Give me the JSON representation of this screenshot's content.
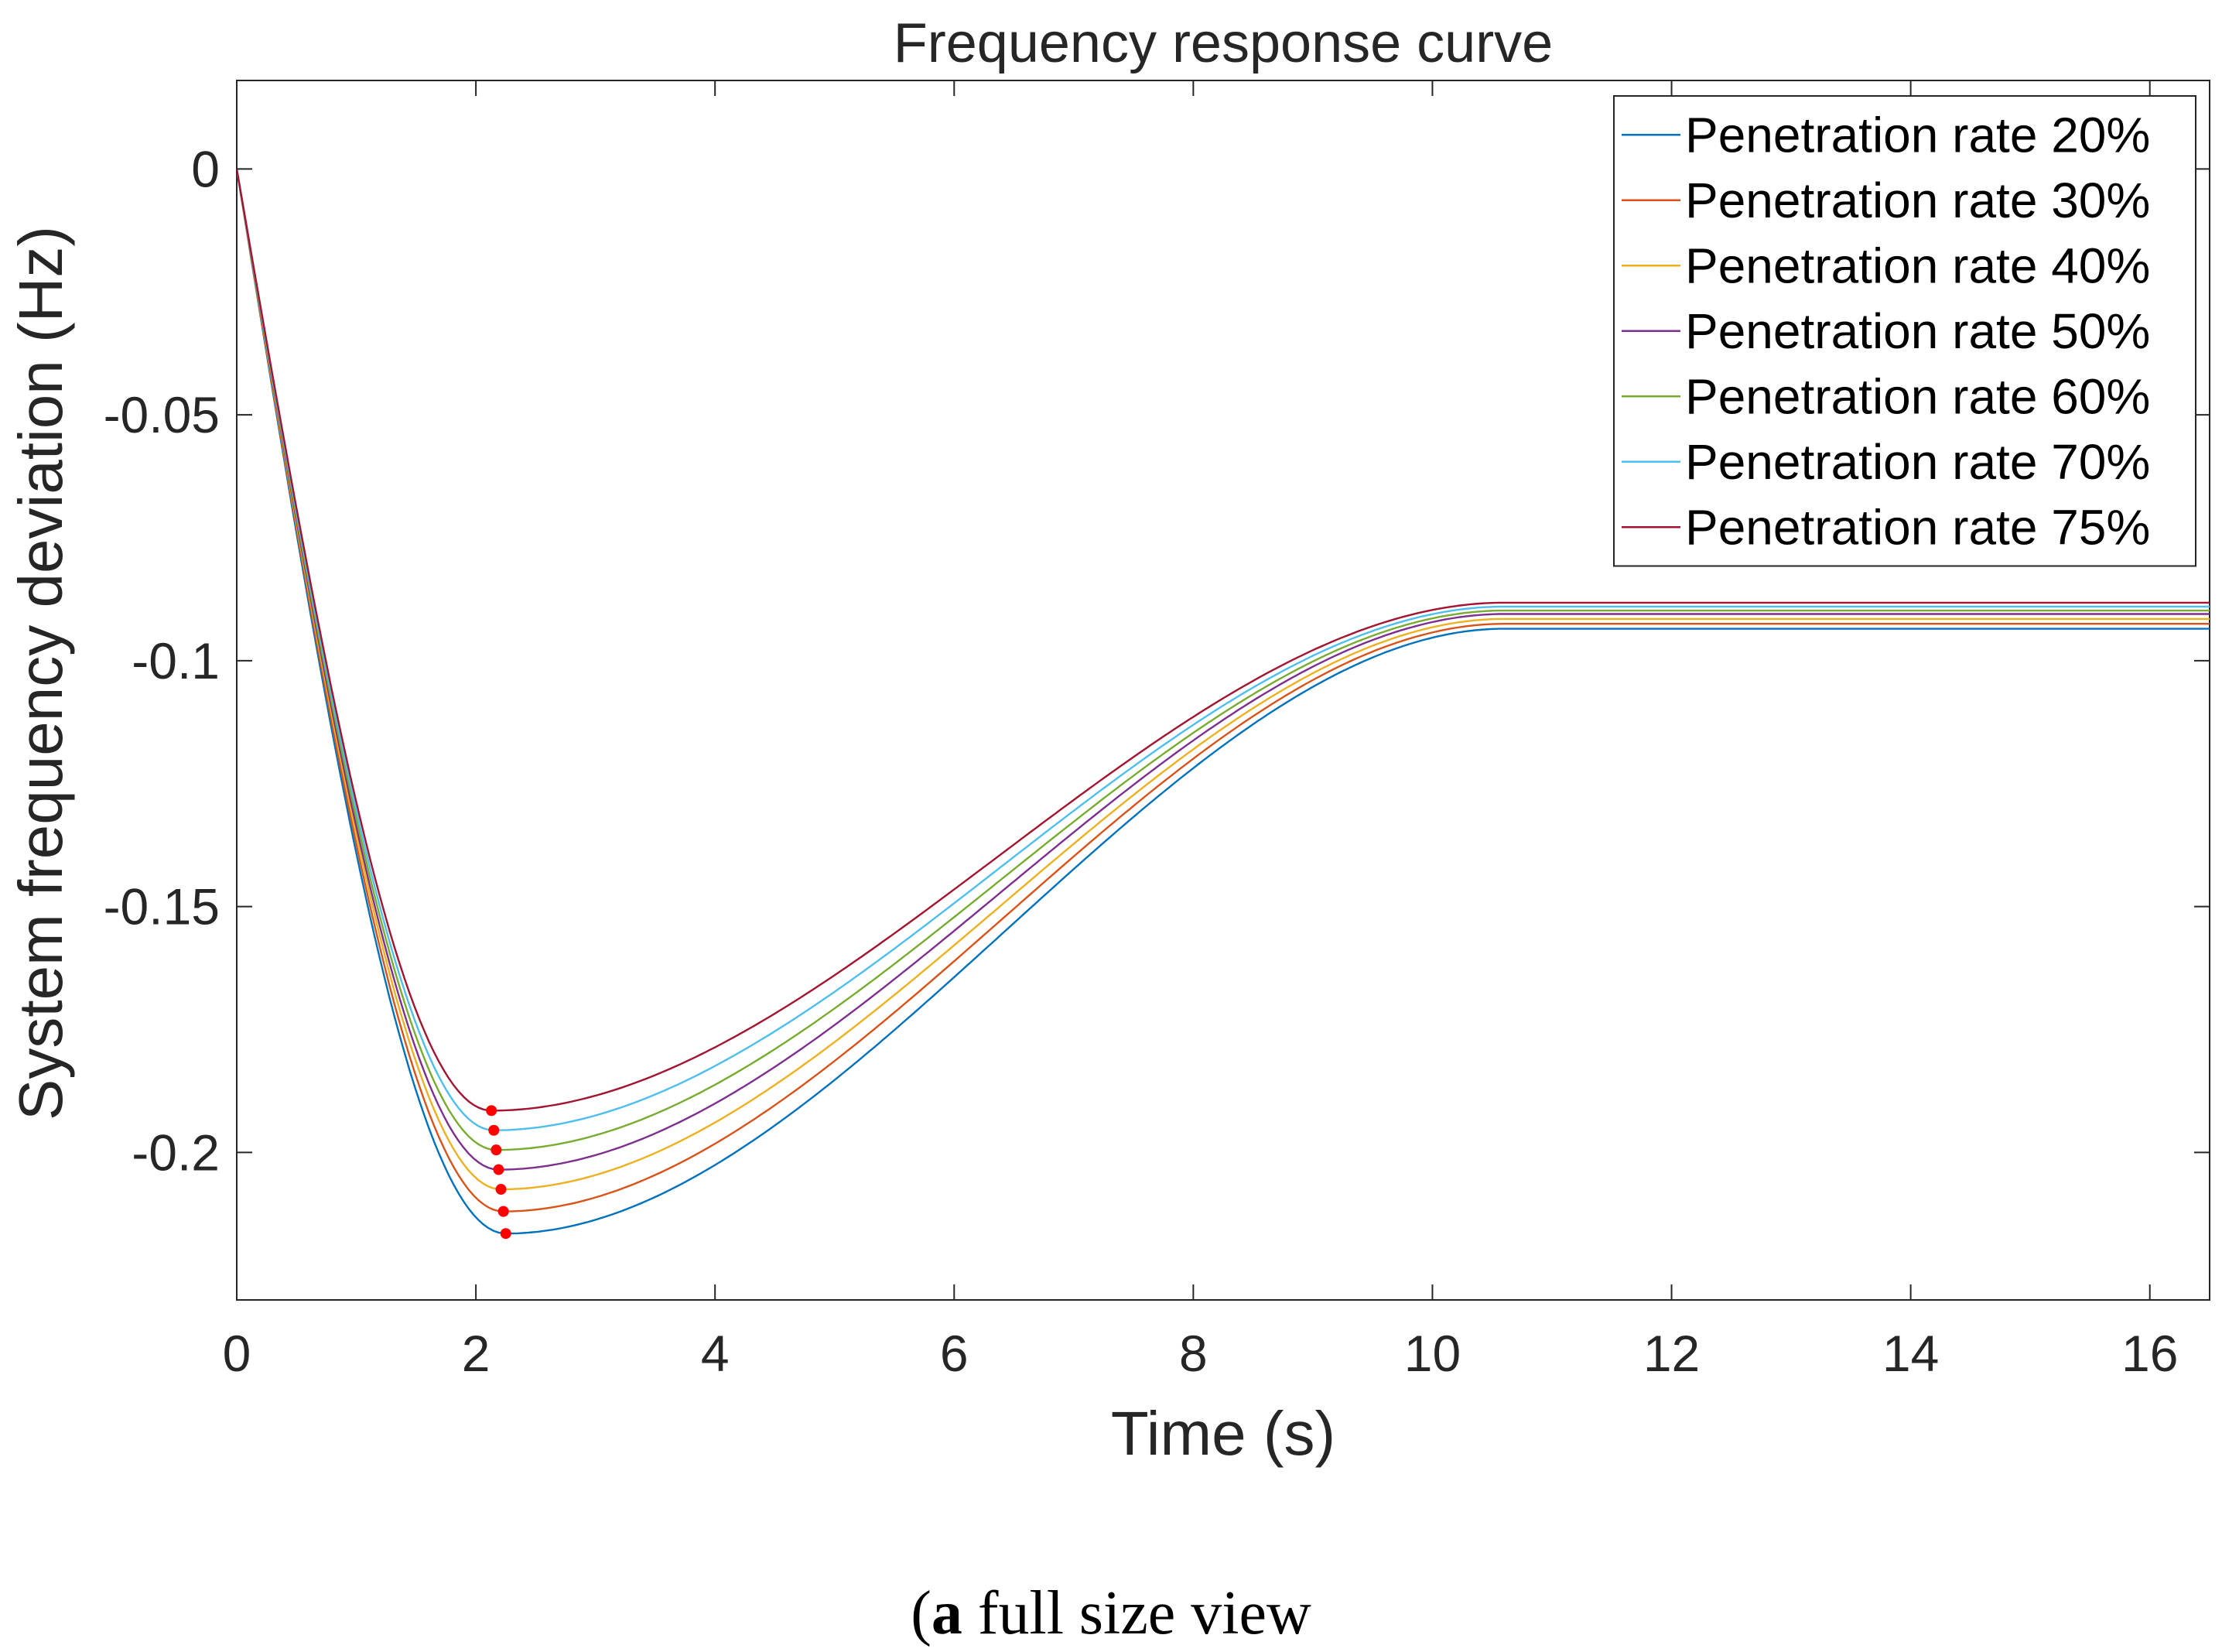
{
  "chart_data": {
    "type": "line",
    "title": "Frequency response curve",
    "xlabel": "Time (s)",
    "ylabel": "System frequency deviation (Hz)",
    "xlim": [
      0,
      16.5
    ],
    "ylim": [
      -0.23,
      0.018
    ],
    "xticks": [
      0,
      2,
      4,
      6,
      8,
      10,
      12,
      14,
      16
    ],
    "yticks": [
      0,
      -0.05,
      -0.1,
      -0.15,
      -0.2
    ],
    "ytick_labels": [
      "0",
      "-0.05",
      "-0.1",
      "-0.15",
      "-0.2"
    ],
    "legend_position": "top-right",
    "series": [
      {
        "name": "Penetration rate 20%",
        "color": "#0072BD",
        "nadir_t": 2.25,
        "nadir_f": -0.2165,
        "final_f": -0.0935
      },
      {
        "name": "Penetration rate 30%",
        "color": "#D95319",
        "nadir_t": 2.23,
        "nadir_f": -0.212,
        "final_f": -0.0925
      },
      {
        "name": "Penetration rate 40%",
        "color": "#EDB120",
        "nadir_t": 2.21,
        "nadir_f": -0.2075,
        "final_f": -0.0915
      },
      {
        "name": "Penetration rate 50%",
        "color": "#7E2F8E",
        "nadir_t": 2.19,
        "nadir_f": -0.2035,
        "final_f": -0.0905
      },
      {
        "name": "Penetration rate 60%",
        "color": "#77AC30",
        "nadir_t": 2.17,
        "nadir_f": -0.1995,
        "final_f": -0.0898
      },
      {
        "name": "Penetration rate 70%",
        "color": "#4DBEEE",
        "nadir_t": 2.15,
        "nadir_f": -0.1955,
        "final_f": -0.089
      },
      {
        "name": "Penetration rate 75%",
        "color": "#A2142F",
        "nadir_t": 2.13,
        "nadir_f": -0.1915,
        "final_f": -0.0882
      }
    ],
    "nadir_marker_color": "#FF0000"
  },
  "caption": {
    "label": "a",
    "text": " full size view"
  }
}
